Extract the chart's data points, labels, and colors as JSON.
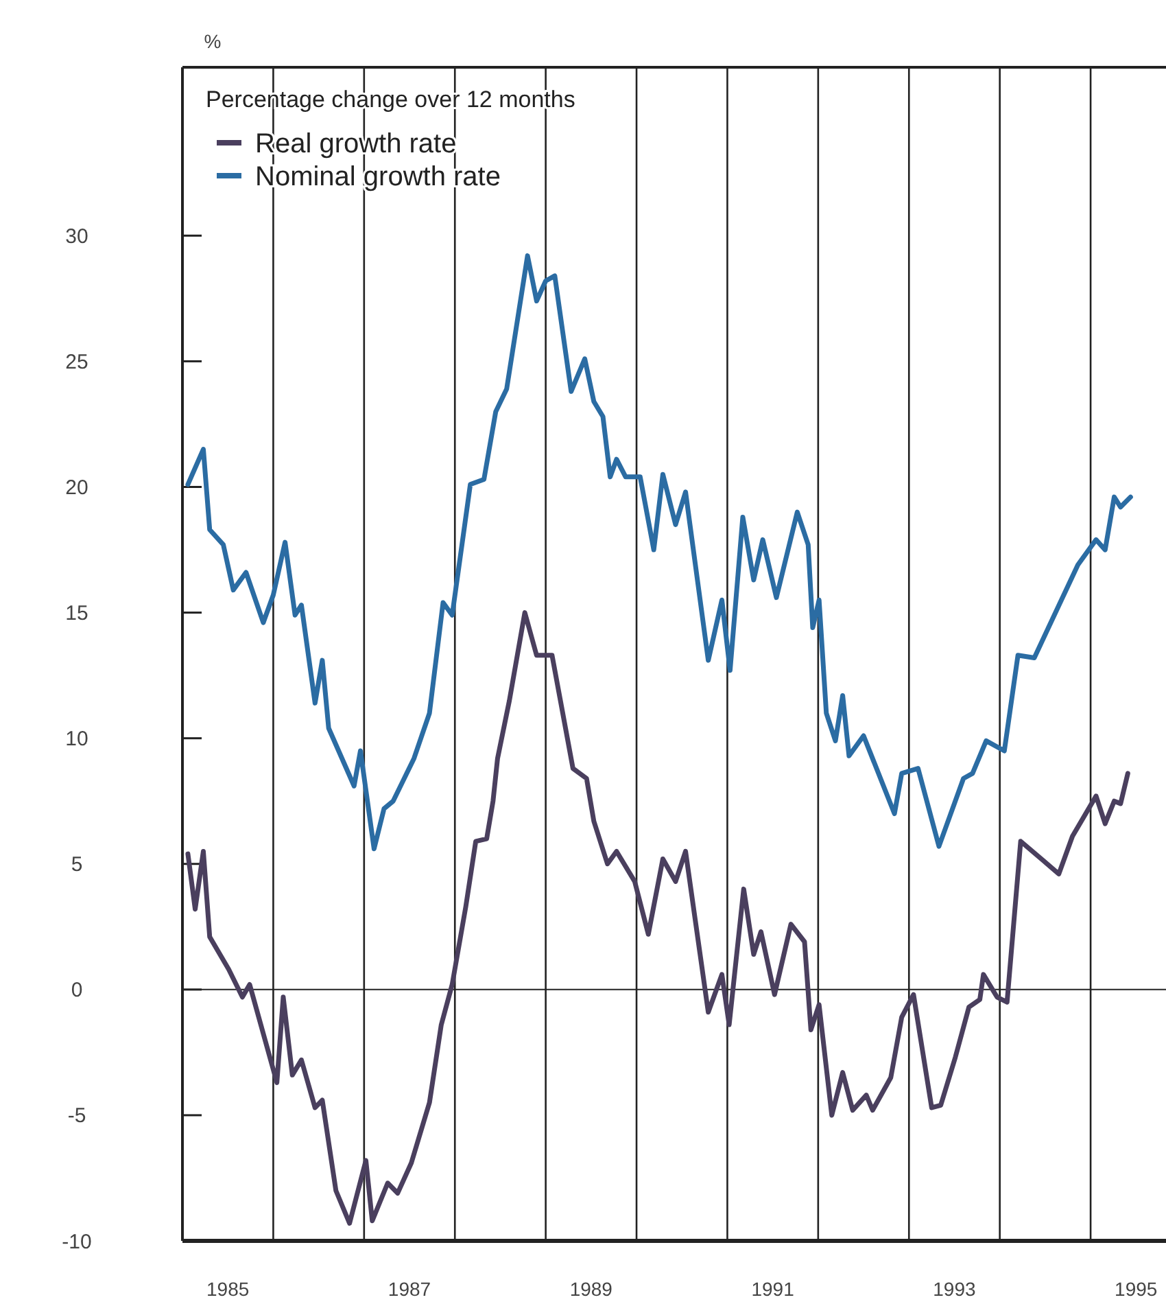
{
  "chart_data": {
    "type": "line",
    "ylabel": "%",
    "legend_title": "Percentage change over 12 months",
    "legend": "top left",
    "grid": "x",
    "line_style": "solid",
    "xlim": [
      1985,
      1995.8
    ],
    "xticks": [
      {
        "value": 1985.5,
        "label": "1985"
      },
      {
        "value": 1986,
        "label": null
      },
      {
        "value": 1987,
        "label": null
      },
      {
        "value": 1987.5,
        "label": "1987"
      },
      {
        "value": 1988,
        "label": null
      },
      {
        "value": 1989,
        "label": null
      },
      {
        "value": 1989.5,
        "label": "1989"
      },
      {
        "value": 1990,
        "label": null
      },
      {
        "value": 1991,
        "label": null
      },
      {
        "value": 1991.5,
        "label": "1991"
      },
      {
        "value": 1992,
        "label": null
      },
      {
        "value": 1993,
        "label": null
      },
      {
        "value": 1993.5,
        "label": "1993"
      },
      {
        "value": 1994,
        "label": null
      },
      {
        "value": 1995,
        "label": null
      },
      {
        "value": 1995.5,
        "label": "1995"
      }
    ],
    "ylim": [
      -10,
      36.7
    ],
    "yticks": [
      -10,
      -5,
      0,
      5,
      10,
      15,
      20,
      25,
      30
    ],
    "ref_lines": [
      {
        "axis": "y",
        "value": 0,
        "color": "#222222"
      }
    ],
    "series": [
      {
        "name": "Real growth rate",
        "color": "#4a3f5e",
        "x": [
          1985.06,
          1985.14,
          1985.23,
          1985.3,
          1985.51,
          1985.66,
          1985.74,
          1986.04,
          1986.11,
          1986.21,
          1986.31,
          1986.46,
          1986.54,
          1986.69,
          1986.84,
          1987.02,
          1987.09,
          1987.26,
          1987.37,
          1987.52,
          1987.72,
          1987.85,
          1987.97,
          1988.12,
          1988.23,
          1988.35,
          1988.42,
          1988.47,
          1988.6,
          1988.77,
          1988.9,
          1989.07,
          1989.3,
          1989.45,
          1989.53,
          1989.68,
          1989.78,
          1989.98,
          1990.13,
          1990.29,
          1990.43,
          1990.54,
          1990.79,
          1990.94,
          1991.02,
          1991.18,
          1991.29,
          1991.37,
          1991.52,
          1991.7,
          1991.85,
          1991.92,
          1992.01,
          1992.15,
          1992.27,
          1992.38,
          1992.53,
          1992.6,
          1992.8,
          1992.92,
          1993.05,
          1993.25,
          1993.35,
          1993.51,
          1993.66,
          1993.78,
          1993.82,
          1993.97,
          1994.08,
          1994.23,
          1994.49,
          1994.65,
          1994.8,
          1995.06,
          1995.16,
          1995.26,
          1995.33,
          1995.41
        ],
        "values": [
          5.4,
          3.2,
          5.5,
          2.1,
          0.8,
          -0.3,
          0.2,
          -3.7,
          -0.3,
          -3.4,
          -2.8,
          -4.7,
          -4.4,
          -8.0,
          -9.3,
          -6.8,
          -9.2,
          -7.7,
          -8.1,
          -6.9,
          -4.5,
          -1.4,
          0.2,
          3.3,
          5.9,
          6.0,
          7.5,
          9.2,
          11.5,
          15.0,
          13.3,
          13.3,
          8.8,
          8.4,
          6.7,
          5.0,
          5.5,
          4.3,
          2.2,
          5.2,
          4.3,
          5.5,
          -0.9,
          0.6,
          -1.4,
          4.0,
          1.4,
          2.3,
          -0.2,
          2.6,
          1.9,
          -1.6,
          -0.6,
          -5.0,
          -3.3,
          -4.8,
          -4.2,
          -4.8,
          -3.5,
          -1.1,
          -0.2,
          -4.7,
          -4.6,
          -2.7,
          -0.7,
          -0.4,
          0.6,
          -0.3,
          -0.5,
          5.9,
          5.1,
          4.6,
          6.1,
          7.7,
          6.6,
          7.5,
          7.4,
          8.6
        ]
      },
      {
        "name": "Nominal growth rate",
        "color": "#2b6ca3",
        "x": [
          1985.06,
          1985.23,
          1985.3,
          1985.45,
          1985.56,
          1985.7,
          1985.89,
          1986.0,
          1986.13,
          1986.24,
          1986.31,
          1986.46,
          1986.54,
          1986.61,
          1986.89,
          1986.96,
          1987.11,
          1987.22,
          1987.32,
          1987.55,
          1987.72,
          1987.87,
          1987.97,
          1988.17,
          1988.32,
          1988.45,
          1988.57,
          1988.8,
          1988.9,
          1989.0,
          1989.1,
          1989.28,
          1989.43,
          1989.53,
          1989.63,
          1989.71,
          1989.78,
          1989.88,
          1990.04,
          1990.19,
          1990.29,
          1990.43,
          1990.54,
          1990.79,
          1990.94,
          1991.03,
          1991.17,
          1991.29,
          1991.39,
          1991.54,
          1991.77,
          1991.89,
          1991.94,
          1992.01,
          1992.09,
          1992.19,
          1992.27,
          1992.34,
          1992.5,
          1992.84,
          1992.92,
          1993.1,
          1993.33,
          1993.6,
          1993.7,
          1993.85,
          1994.05,
          1994.2,
          1994.38,
          1994.86,
          1995.06,
          1995.16,
          1995.26,
          1995.33,
          1995.44
        ],
        "values": [
          20.1,
          21.5,
          18.3,
          17.7,
          15.9,
          16.6,
          14.6,
          15.7,
          17.8,
          14.9,
          15.3,
          11.4,
          13.1,
          10.4,
          8.1,
          9.5,
          5.6,
          7.2,
          7.5,
          9.2,
          11.0,
          15.4,
          14.9,
          20.1,
          20.3,
          23.0,
          23.9,
          29.2,
          27.4,
          28.2,
          28.4,
          23.8,
          25.1,
          23.4,
          22.8,
          20.4,
          21.1,
          20.4,
          20.4,
          17.5,
          20.5,
          18.5,
          19.8,
          13.1,
          15.5,
          12.7,
          18.8,
          16.3,
          17.9,
          15.6,
          19.0,
          17.7,
          14.4,
          15.5,
          11.0,
          9.9,
          11.7,
          9.3,
          10.1,
          7.0,
          8.6,
          8.8,
          5.7,
          8.4,
          8.6,
          9.9,
          9.5,
          13.3,
          13.2,
          16.9,
          17.9,
          17.5,
          19.6,
          19.2,
          19.6
        ]
      }
    ]
  }
}
